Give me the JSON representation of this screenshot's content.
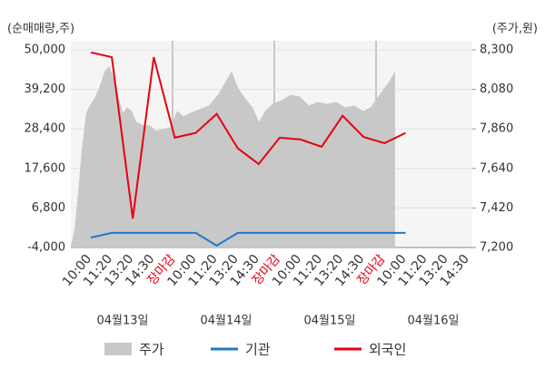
{
  "chart_data": {
    "type": "combo",
    "y_label": "(순매매량,주)",
    "y2_label": "(주가,원)",
    "categories": [
      "10:00",
      "11:20",
      "13:20",
      "14:30",
      "장마감",
      "10:00",
      "11:20",
      "13:20",
      "14:30",
      "장마감",
      "10:00",
      "11:20",
      "13:20",
      "14:30",
      "장마감",
      "10:00",
      "11:20",
      "13:20",
      "14:30"
    ],
    "highlight_categories": [
      4,
      9,
      14
    ],
    "highlight_color": "#e60012",
    "dates": [
      "04월13일",
      "04월14일",
      "04월15일",
      "04월16일"
    ],
    "ylim": [
      -4000,
      50000
    ],
    "yticks": [
      {
        "value": 50000,
        "label": "50,000"
      },
      {
        "value": 39200,
        "label": "39,200"
      },
      {
        "value": 28400,
        "label": "28,400"
      },
      {
        "value": 17600,
        "label": "17,600"
      },
      {
        "value": 6800,
        "label": "6,800"
      },
      {
        "value": -4000,
        "label": "-4,000"
      }
    ],
    "y2lim": [
      7200,
      8300
    ],
    "y2ticks": [
      {
        "value": 8300,
        "label": "8,300"
      },
      {
        "value": 8080,
        "label": "8,080"
      },
      {
        "value": 7860,
        "label": "7,860"
      },
      {
        "value": 7640,
        "label": "7,640"
      },
      {
        "value": 7420,
        "label": "7,420"
      },
      {
        "value": 7200,
        "label": "7,200"
      }
    ],
    "series": [
      {
        "name": "주가",
        "kind": "area",
        "axis": "y2",
        "color": "#c8c8c8",
        "x": [
          -0.95,
          -0.78,
          -0.61,
          -0.43,
          -0.22,
          0,
          0.22,
          0.43,
          0.65,
          0.87,
          1.08,
          1.3,
          1.52,
          1.73,
          1.95,
          2.16,
          2.51,
          2.81,
          3.12,
          3.46,
          3.81,
          4.11,
          4.42,
          4.76,
          5.19,
          5.63,
          6.06,
          6.41,
          6.71,
          7.01,
          7.36,
          7.71,
          8.01,
          8.31,
          8.66,
          9.09,
          9.52,
          9.96,
          10.39,
          10.82,
          11.26,
          11.69,
          12.12,
          12.55,
          12.99,
          13.33,
          13.64,
          13.94,
          14.2,
          14.5
        ],
        "values": [
          7210,
          7300,
          7500,
          7750,
          7950,
          8000,
          8040,
          8100,
          8180,
          8210,
          8150,
          8050,
          7950,
          7980,
          7960,
          7900,
          7880,
          7880,
          7850,
          7860,
          7870,
          7960,
          7930,
          7950,
          7970,
          7990,
          8050,
          8120,
          8180,
          8090,
          8030,
          7980,
          7900,
          7960,
          8000,
          8020,
          8050,
          8040,
          7990,
          8010,
          8000,
          8010,
          7980,
          7990,
          7960,
          7980,
          8030,
          8080,
          8120,
          8180
        ]
      },
      {
        "name": "기관",
        "kind": "line",
        "color": "#1f78c8",
        "values": [
          -1300,
          0,
          0,
          0,
          0,
          0,
          -3500,
          0,
          0,
          0,
          0,
          0,
          0,
          0,
          0,
          0,
          null,
          null,
          null
        ]
      },
      {
        "name": "외국인",
        "kind": "line",
        "color": "#e60012",
        "values": [
          49300,
          48000,
          3900,
          48000,
          26000,
          27300,
          32500,
          23100,
          18800,
          26000,
          25500,
          23500,
          32000,
          26200,
          24500,
          27300,
          null,
          null,
          null
        ]
      }
    ]
  }
}
